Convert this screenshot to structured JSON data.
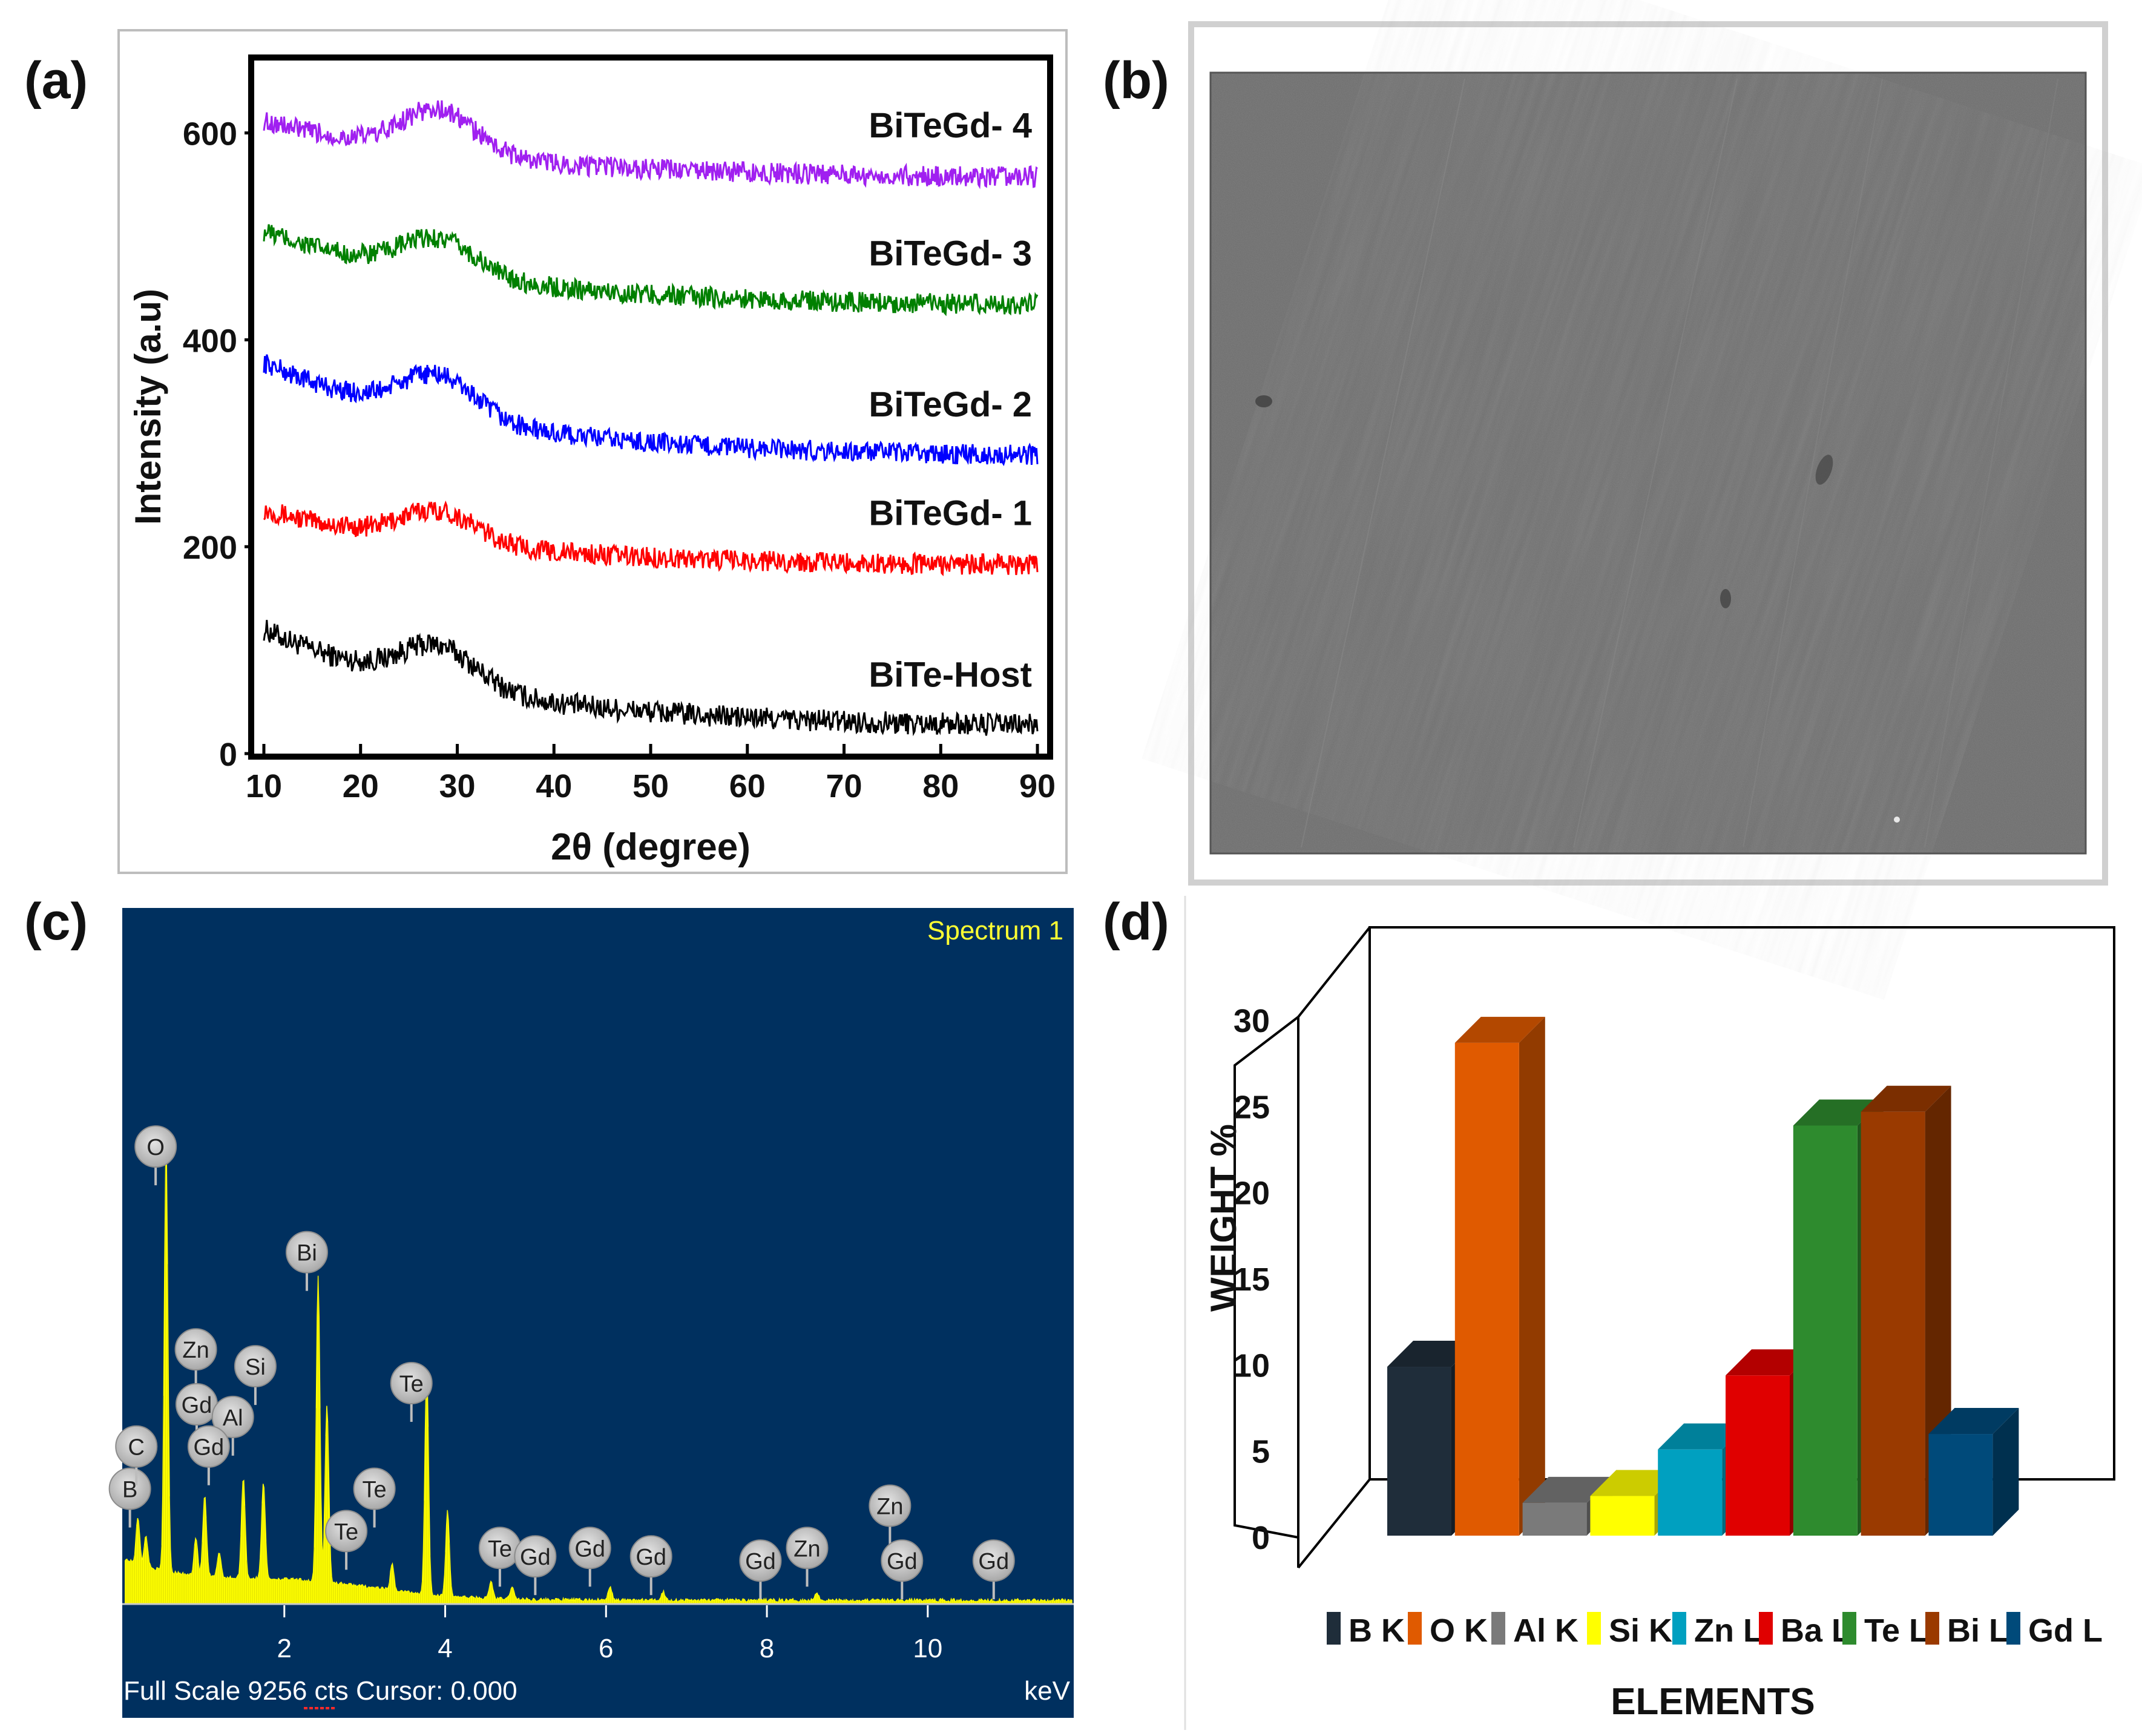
{
  "panels": {
    "a": "(a)",
    "b": "(b)",
    "c": "(c)",
    "d": "(d)"
  },
  "chart_data": [
    {
      "id": "xrd",
      "type": "line",
      "xlabel": "2θ (degree)",
      "ylabel": "Intensity (a.u)",
      "xlim": [
        9,
        91
      ],
      "ylim": [
        0,
        670
      ],
      "xticks": [
        "10",
        "20",
        "30",
        "40",
        "50",
        "60",
        "70",
        "80",
        "90"
      ],
      "yticks": [
        "0",
        "200",
        "400",
        "600"
      ],
      "series": [
        {
          "name": "BiTe-Host",
          "color": "#000000",
          "start": 120,
          "end": 25,
          "hump": 38,
          "noise": 11
        },
        {
          "name": "BiTeGd- 1",
          "color": "#ff0000",
          "start": 236,
          "end": 181,
          "hump": 30,
          "noise": 10
        },
        {
          "name": "BiTeGd- 2",
          "color": "#0000ff",
          "start": 378,
          "end": 286,
          "hump": 40,
          "noise": 10
        },
        {
          "name": "BiTeGd- 3",
          "color": "#008000",
          "start": 505,
          "end": 432,
          "hump": 34,
          "noise": 10
        },
        {
          "name": "BiTeGd- 4",
          "color": "#a020f0",
          "start": 612,
          "end": 556,
          "hump": 42,
          "noise": 10
        }
      ]
    },
    {
      "id": "edx",
      "type": "line",
      "title": "Spectrum 1",
      "xunit": "keV",
      "footer": "Full Scale 9256 cts Cursor: 0.000",
      "xlim": [
        0,
        11.8
      ],
      "xticks": [
        "2",
        "4",
        "6",
        "8",
        "10"
      ],
      "peaks": [
        {
          "energy": 0.18,
          "height": 0.11
        },
        {
          "energy": 0.28,
          "height": 0.07
        },
        {
          "energy": 0.53,
          "height": 1.0
        },
        {
          "energy": 0.9,
          "height": 0.09
        },
        {
          "energy": 1.01,
          "height": 0.19
        },
        {
          "energy": 1.19,
          "height": 0.06
        },
        {
          "energy": 1.49,
          "height": 0.24
        },
        {
          "energy": 1.74,
          "height": 0.23
        },
        {
          "energy": 2.42,
          "height": 0.72
        },
        {
          "energy": 2.53,
          "height": 0.42
        },
        {
          "energy": 3.34,
          "height": 0.06
        },
        {
          "energy": 3.77,
          "height": 0.54
        },
        {
          "energy": 4.03,
          "height": 0.2
        },
        {
          "energy": 4.57,
          "height": 0.04
        },
        {
          "energy": 4.83,
          "height": 0.03
        },
        {
          "energy": 6.05,
          "height": 0.03
        },
        {
          "energy": 6.71,
          "height": 0.02
        },
        {
          "energy": 8.62,
          "height": 0.02
        }
      ],
      "element_labels": [
        {
          "text": "B",
          "energy": 0.08,
          "label_height": 0.27
        },
        {
          "text": "C",
          "energy": 0.16,
          "label_height": 0.37
        },
        {
          "text": "O",
          "energy": 0.4,
          "label_height": 1.08
        },
        {
          "text": "Zn",
          "energy": 0.9,
          "label_height": 0.6
        },
        {
          "text": "Gd",
          "energy": 0.91,
          "label_height": 0.47
        },
        {
          "text": "Al",
          "energy": 1.36,
          "label_height": 0.44
        },
        {
          "text": "Gd",
          "energy": 1.06,
          "label_height": 0.37
        },
        {
          "text": "Si",
          "energy": 1.64,
          "label_height": 0.56
        },
        {
          "text": "Bi",
          "energy": 2.28,
          "label_height": 0.83
        },
        {
          "text": "Te",
          "energy": 2.77,
          "label_height": 0.17
        },
        {
          "text": "Te",
          "energy": 3.12,
          "label_height": 0.27
        },
        {
          "text": "Te",
          "energy": 3.58,
          "label_height": 0.52
        },
        {
          "text": "Te",
          "energy": 4.68,
          "label_height": 0.13
        },
        {
          "text": "Gd",
          "energy": 5.12,
          "label_height": 0.11
        },
        {
          "text": "Gd",
          "energy": 5.8,
          "label_height": 0.13
        },
        {
          "text": "Gd",
          "energy": 6.56,
          "label_height": 0.11
        },
        {
          "text": "Gd",
          "energy": 7.92,
          "label_height": 0.1
        },
        {
          "text": "Zn",
          "energy": 8.5,
          "label_height": 0.13
        },
        {
          "text": "Zn",
          "energy": 9.53,
          "label_height": 0.23
        },
        {
          "text": "Gd",
          "energy": 9.68,
          "label_height": 0.1
        },
        {
          "text": "Gd",
          "energy": 10.82,
          "label_height": 0.1
        }
      ]
    },
    {
      "id": "weight",
      "type": "bar",
      "xlabel": "ELEMENTS",
      "ylabel": "WEIGHT %",
      "ylim": [
        0,
        30
      ],
      "yticks": [
        "0",
        "5",
        "10",
        "15",
        "20",
        "25",
        "30"
      ],
      "categories": [
        "B K",
        "O K",
        "Al K",
        "Si K",
        "Zn L",
        "Ba L",
        "Te L",
        "Bi L",
        "Gd L"
      ],
      "values": [
        9.8,
        28.6,
        1.9,
        2.3,
        5.0,
        9.3,
        23.8,
        24.6,
        5.9
      ],
      "colors": [
        "#1f2d3a",
        "#e05a00",
        "#7a7a7a",
        "#ffff00",
        "#00a0c0",
        "#e00000",
        "#2e8b2e",
        "#9a3a00",
        "#004a7a"
      ]
    }
  ]
}
